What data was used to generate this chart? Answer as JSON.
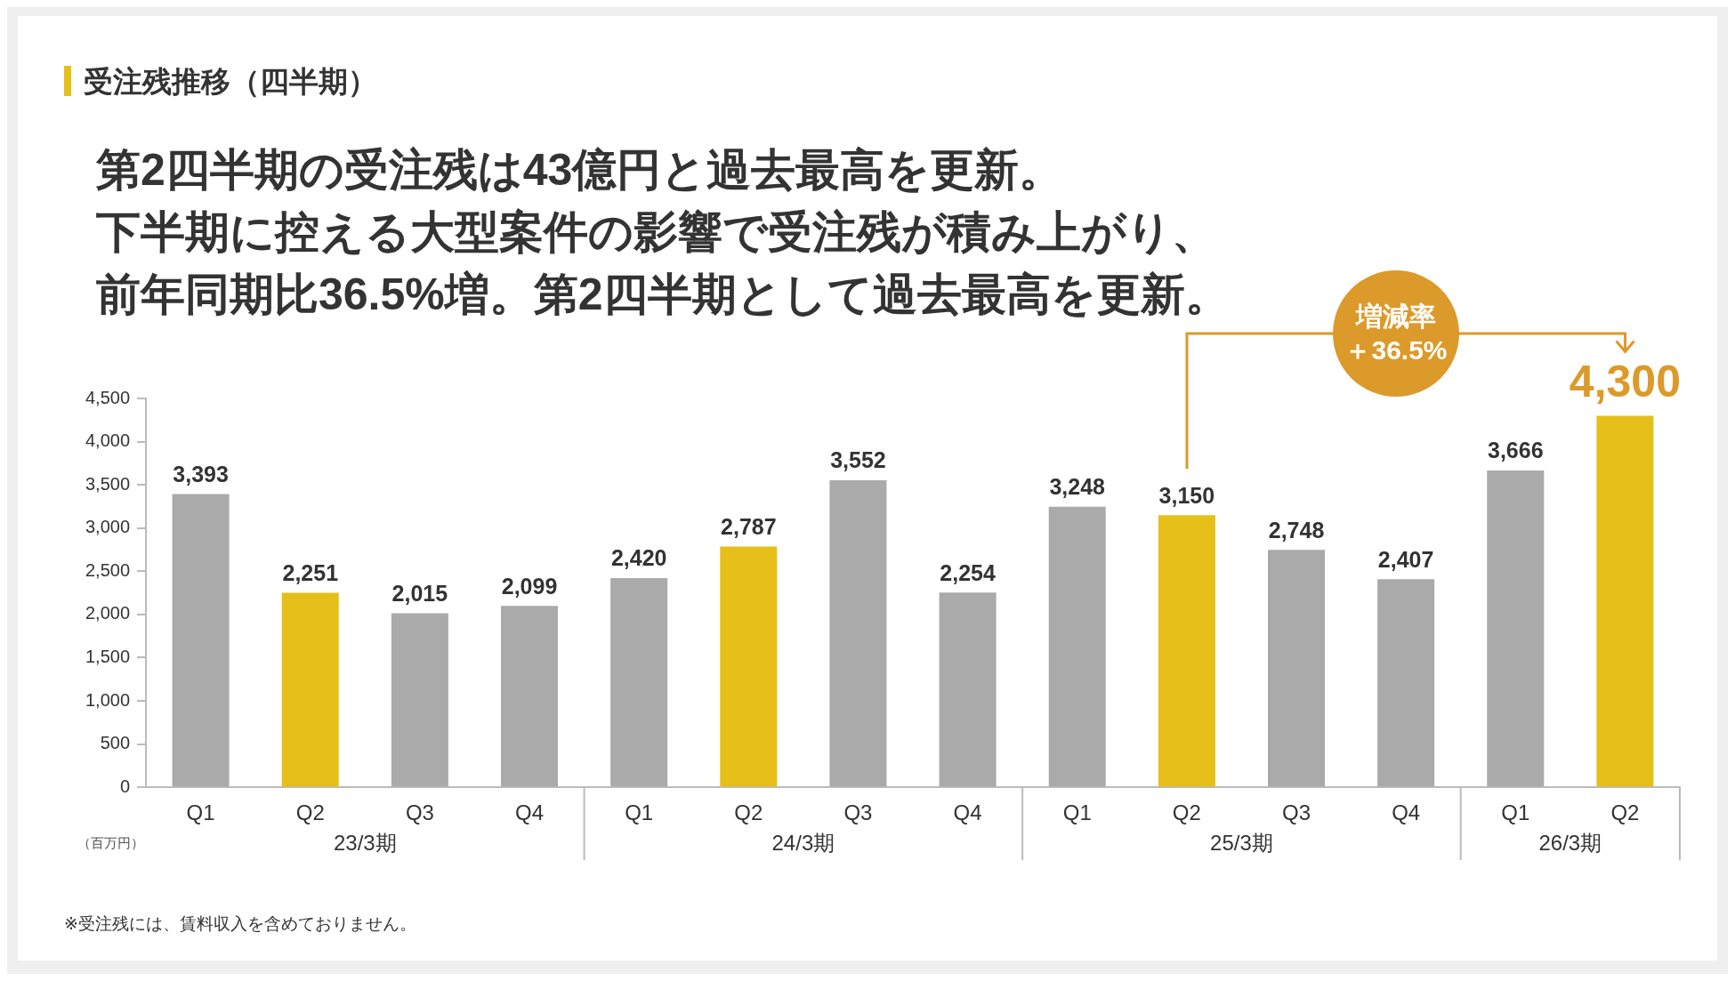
{
  "chart_data": {
    "type": "bar",
    "title": "受注残推移（四半期）",
    "subtitle": "第2四半期の受注残は43億円と過去最高を更新。下半期に控える大型案件の影響で受注残が積み上がり、前年同期比36.5%増。第2四半期として過去最高を更新。",
    "ylabel": "（百万円）",
    "categories": [
      "Q1",
      "Q2",
      "Q3",
      "Q4",
      "Q1",
      "Q2",
      "Q3",
      "Q4",
      "Q1",
      "Q2",
      "Q3",
      "Q4",
      "Q1",
      "Q2"
    ],
    "values": [
      3393,
      2251,
      2015,
      2099,
      2420,
      2787,
      3552,
      2254,
      3248,
      3150,
      2748,
      2407,
      3666,
      4300
    ],
    "colors": [
      "#a9aaa9",
      "#e6c018",
      "#a9aaa9",
      "#a9aaa9",
      "#a9aaa9",
      "#e6c018",
      "#a9aaa9",
      "#a9aaa9",
      "#a9aaa9",
      "#e6c018",
      "#a9aaa9",
      "#a9aaa9",
      "#a9aaa9",
      "#e6c018"
    ],
    "value_labels": [
      "3,393",
      "2,251",
      "2,015",
      "2,099",
      "2,420",
      "2,787",
      "3,552",
      "2,254",
      "3,248",
      "3,150",
      "2,748",
      "2,407",
      "3,666",
      "4,300"
    ],
    "ylim": [
      0,
      4500
    ],
    "yticks": [
      0,
      {
        "value": 500,
        "label": "500"
      },
      {
        "value": 1000,
        "label": "1,000"
      },
      {
        "value": 1500,
        "label": "1,500"
      },
      {
        "value": 2000,
        "label": "2,000"
      },
      {
        "value": 2500,
        "label": "2,500"
      },
      {
        "value": 3000,
        "label": "3,000"
      },
      {
        "value": 3500,
        "label": "3,500"
      },
      {
        "value": 4000,
        "label": "4,000"
      },
      {
        "value": 4500,
        "label": "4,500"
      }
    ],
    "annotations": [
      "23/3期",
      "24/3期",
      "25/3期",
      "26/3期",
      "増減率",
      "＋36.5%",
      "※受注残には、賃料収入を含めておりません。"
    ]
  }
}
